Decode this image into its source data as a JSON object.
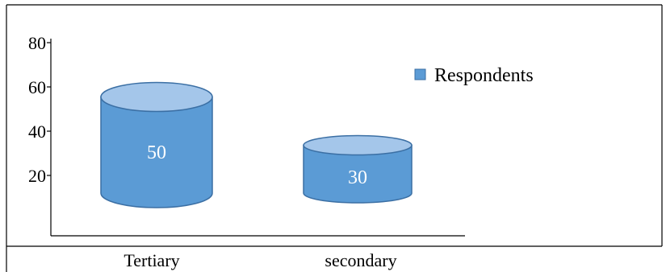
{
  "chart_data": {
    "type": "bar",
    "style": "cylinder",
    "categories": [
      "Tertiary",
      "secondary"
    ],
    "series": [
      {
        "name": "Respondents",
        "values": [
          50,
          30
        ]
      }
    ],
    "data_labels": [
      "50",
      "30"
    ],
    "y_ticks": [
      20,
      40,
      60,
      80
    ],
    "y_tick_labels": [
      "20",
      "40",
      "60",
      "80"
    ],
    "ylim": [
      0,
      100
    ],
    "legend": {
      "position": "right",
      "label": "Respondents"
    },
    "grid": false,
    "colors": {
      "bar_body": "#5b9bd5",
      "bar_top": "#a4c6ea",
      "bar_outline": "#3b6fa4",
      "axis": "#000000"
    }
  }
}
